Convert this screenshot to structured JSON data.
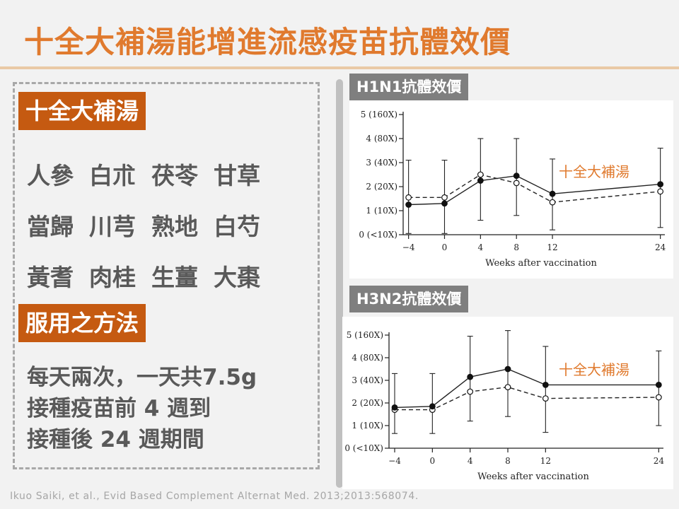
{
  "slide": {
    "title": "十全大補湯能增進流感疫苗抗體效價",
    "citation": "Ikuo Saiki, et al., Evid Based Complement Alternat Med. 2013;2013:568074."
  },
  "left": {
    "herbs_heading": "十全大補湯",
    "herb_rows": [
      [
        "人參",
        "白朮",
        "茯苓",
        "甘草"
      ],
      [
        "當歸",
        "川芎",
        "熟地",
        "白芍"
      ],
      [
        "黃耆",
        "肉桂",
        "生薑",
        "大棗"
      ]
    ],
    "method_heading": "服用之方法",
    "method_lines": [
      "每天兩次，一天共7.5g",
      "接種疫苗前 4 週到",
      "接種後 24 週期間"
    ]
  },
  "colors": {
    "title": "#e07a2e",
    "heading_bg": "#c55a11",
    "label_bg": "#7f7f7f",
    "annotation": "#e07a2e"
  },
  "chart_data": [
    {
      "type": "line",
      "label": "H1N1抗體效價",
      "xlabel": "Weeks after vaccination",
      "ylabel": "",
      "x": [
        -4,
        0,
        4,
        8,
        12,
        24
      ],
      "xticks": [
        "−4",
        "0",
        "4",
        "8",
        "12",
        "24"
      ],
      "yticks": [
        0,
        1,
        2,
        3,
        4,
        5
      ],
      "yticklabels": [
        "0 (<10X)",
        "1 (10X)",
        "2 (20X)",
        "3 (40X)",
        "4 (80X)",
        "5 (160X)"
      ],
      "ylim": [
        0,
        5
      ],
      "annotation": "十全大補湯",
      "series": [
        {
          "name": "十全大補湯",
          "marker": "filled",
          "line": "solid",
          "values": [
            1.25,
            1.3,
            2.25,
            2.45,
            1.7,
            2.1
          ],
          "err_high": [
            3.1,
            3.1,
            4.0,
            4.0,
            3.15,
            3.6
          ],
          "err_low": [
            0.05,
            0.05,
            0.6,
            0.8,
            0.2,
            0.3
          ]
        },
        {
          "name": "",
          "marker": "open",
          "line": "dashed",
          "values": [
            1.55,
            1.55,
            2.5,
            2.15,
            1.35,
            1.8
          ]
        }
      ]
    },
    {
      "type": "line",
      "label": "H3N2抗體效價",
      "xlabel": "Weeks after vaccination",
      "ylabel": "",
      "x": [
        -4,
        0,
        4,
        8,
        12,
        24
      ],
      "xticks": [
        "−4",
        "0",
        "4",
        "8",
        "12",
        "24"
      ],
      "yticks": [
        0,
        1,
        2,
        3,
        4,
        5
      ],
      "yticklabels": [
        "0 (<10X)",
        "1 (10X)",
        "2 (20X)",
        "3 (40X)",
        "4 (80X)",
        "5 (160X)"
      ],
      "ylim": [
        0,
        5
      ],
      "annotation": "十全大補湯",
      "series": [
        {
          "name": "十全大補湯",
          "marker": "filled",
          "line": "solid",
          "values": [
            1.8,
            1.85,
            3.15,
            3.5,
            2.8,
            2.8
          ],
          "err_high": [
            3.3,
            3.3,
            4.95,
            5.2,
            4.5,
            4.3
          ],
          "err_low": [
            0.65,
            0.65,
            1.2,
            1.4,
            0.7,
            1.0
          ]
        },
        {
          "name": "",
          "marker": "open",
          "line": "dashed",
          "values": [
            1.7,
            1.7,
            2.5,
            2.7,
            2.2,
            2.25
          ]
        }
      ]
    }
  ]
}
